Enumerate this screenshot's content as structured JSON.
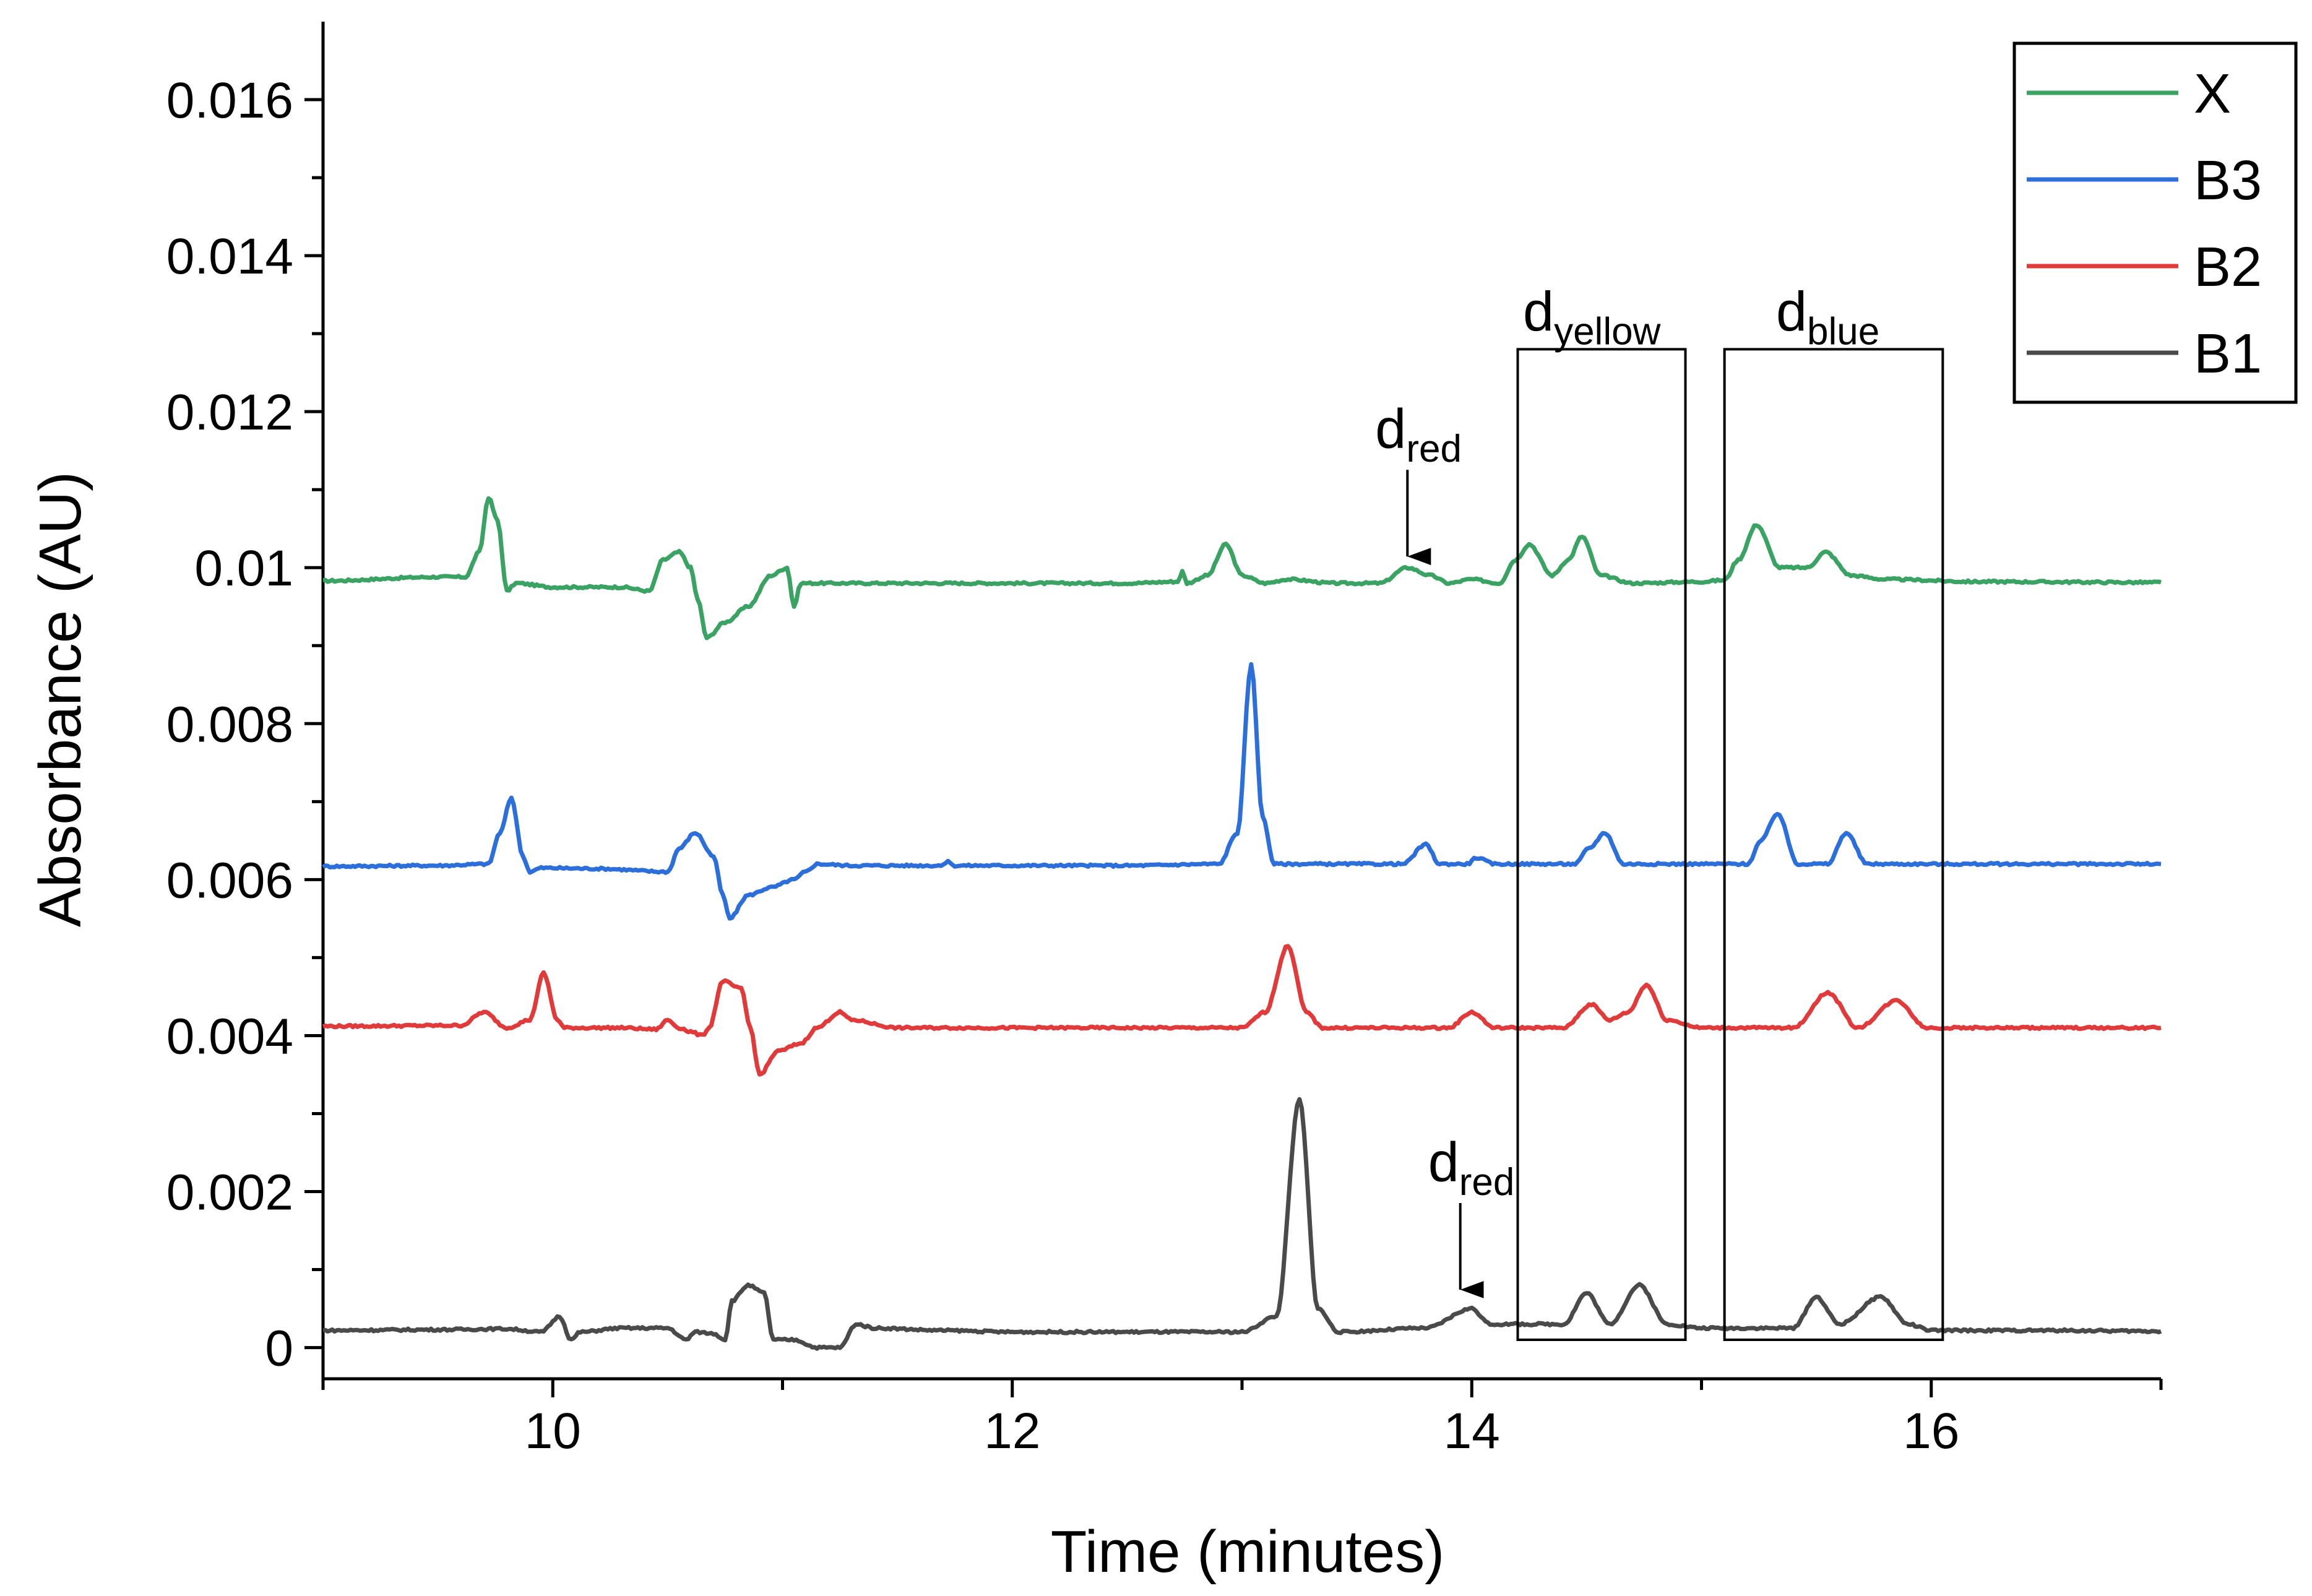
{
  "chart_data": {
    "type": "line",
    "xlabel": "Time (minutes)",
    "ylabel": "Absorbance (AU)",
    "xlim": [
      9,
      17
    ],
    "ylim": [
      -0.0004,
      0.017
    ],
    "x_ticks": [
      10,
      12,
      14,
      16
    ],
    "x_tick_labels": [
      "10",
      "12",
      "14",
      "16"
    ],
    "y_ticks": [
      0,
      0.002,
      0.004,
      0.006,
      0.008,
      0.01,
      0.012,
      0.014,
      0.016
    ],
    "y_tick_labels": [
      "0",
      "0.002",
      "0.004",
      "0.006",
      "0.008",
      "0.01",
      "0.012",
      "0.014",
      "0.016"
    ],
    "grid": false,
    "legend_position": "top-right",
    "series": [
      {
        "name": "X",
        "color": "#3aa363",
        "baseline": 0.0098,
        "points": [
          [
            9.0,
            0.00983
          ],
          [
            9.5,
            0.00988
          ],
          [
            9.62,
            0.00988
          ],
          [
            9.68,
            0.0102
          ],
          [
            9.72,
            0.0109
          ],
          [
            9.76,
            0.0106
          ],
          [
            9.8,
            0.0097
          ],
          [
            9.84,
            0.0098
          ],
          [
            10.0,
            0.00975
          ],
          [
            10.3,
            0.00975
          ],
          [
            10.42,
            0.0097
          ],
          [
            10.48,
            0.0101
          ],
          [
            10.55,
            0.0102
          ],
          [
            10.6,
            0.01
          ],
          [
            10.63,
            0.0096
          ],
          [
            10.67,
            0.0091
          ],
          [
            10.75,
            0.0093
          ],
          [
            10.85,
            0.0095
          ],
          [
            10.95,
            0.0099
          ],
          [
            11.02,
            0.01
          ],
          [
            11.05,
            0.0095
          ],
          [
            11.08,
            0.0098
          ],
          [
            11.5,
            0.0098
          ],
          [
            12.0,
            0.0098
          ],
          [
            12.5,
            0.0098
          ],
          [
            12.72,
            0.00982
          ],
          [
            12.74,
            0.00995
          ],
          [
            12.76,
            0.0098
          ],
          [
            12.85,
            0.0099
          ],
          [
            12.93,
            0.0103
          ],
          [
            13.0,
            0.0099
          ],
          [
            13.1,
            0.0098
          ],
          [
            13.2,
            0.00985
          ],
          [
            13.4,
            0.0098
          ],
          [
            13.6,
            0.0098
          ],
          [
            13.72,
            0.01
          ],
          [
            13.82,
            0.0099
          ],
          [
            13.9,
            0.0098
          ],
          [
            14.0,
            0.00985
          ],
          [
            14.12,
            0.0098
          ],
          [
            14.19,
            0.0101
          ],
          [
            14.25,
            0.0103
          ],
          [
            14.35,
            0.0099
          ],
          [
            14.42,
            0.0101
          ],
          [
            14.48,
            0.0104
          ],
          [
            14.56,
            0.0099
          ],
          [
            14.7,
            0.0098
          ],
          [
            15.0,
            0.00982
          ],
          [
            15.1,
            0.00984
          ],
          [
            15.16,
            0.0101
          ],
          [
            15.24,
            0.01055
          ],
          [
            15.34,
            0.01
          ],
          [
            15.46,
            0.01
          ],
          [
            15.54,
            0.0102
          ],
          [
            15.65,
            0.0099
          ],
          [
            15.8,
            0.00985
          ],
          [
            16.2,
            0.00982
          ],
          [
            17.0,
            0.00981
          ]
        ]
      },
      {
        "name": "B3",
        "color": "#2c6fdb",
        "baseline": 0.0062,
        "points": [
          [
            9.0,
            0.00617
          ],
          [
            9.5,
            0.00618
          ],
          [
            9.72,
            0.0062
          ],
          [
            9.77,
            0.0066
          ],
          [
            9.82,
            0.00705
          ],
          [
            9.87,
            0.0063
          ],
          [
            9.9,
            0.0061
          ],
          [
            9.95,
            0.00615
          ],
          [
            10.2,
            0.00614
          ],
          [
            10.5,
            0.0061
          ],
          [
            10.55,
            0.0064
          ],
          [
            10.62,
            0.0066
          ],
          [
            10.7,
            0.0063
          ],
          [
            10.74,
            0.0058
          ],
          [
            10.77,
            0.0055
          ],
          [
            10.85,
            0.0058
          ],
          [
            10.95,
            0.0059
          ],
          [
            11.05,
            0.006
          ],
          [
            11.1,
            0.0061
          ],
          [
            11.15,
            0.0062
          ],
          [
            11.3,
            0.00618
          ],
          [
            11.7,
            0.00618
          ],
          [
            11.72,
            0.00625
          ],
          [
            11.74,
            0.00618
          ],
          [
            12.5,
            0.00618
          ],
          [
            12.9,
            0.0062
          ],
          [
            12.98,
            0.0066
          ],
          [
            13.04,
            0.00875
          ],
          [
            13.09,
            0.0068
          ],
          [
            13.14,
            0.0062
          ],
          [
            13.3,
            0.0062
          ],
          [
            13.7,
            0.0062
          ],
          [
            13.8,
            0.00645
          ],
          [
            13.86,
            0.0062
          ],
          [
            13.98,
            0.0062
          ],
          [
            14.02,
            0.00628
          ],
          [
            14.1,
            0.0062
          ],
          [
            14.45,
            0.0062
          ],
          [
            14.51,
            0.0064
          ],
          [
            14.58,
            0.0066
          ],
          [
            14.66,
            0.0062
          ],
          [
            14.9,
            0.0062
          ],
          [
            15.2,
            0.0062
          ],
          [
            15.26,
            0.0065
          ],
          [
            15.33,
            0.00685
          ],
          [
            15.42,
            0.0062
          ],
          [
            15.55,
            0.0062
          ],
          [
            15.63,
            0.0066
          ],
          [
            15.72,
            0.0062
          ],
          [
            16.0,
            0.0062
          ],
          [
            16.5,
            0.0062
          ],
          [
            17.0,
            0.0062
          ]
        ]
      },
      {
        "name": "B2",
        "color": "#e03a3a",
        "baseline": 0.0041,
        "points": [
          [
            9.0,
            0.00412
          ],
          [
            9.6,
            0.00413
          ],
          [
            9.7,
            0.0043
          ],
          [
            9.8,
            0.0041
          ],
          [
            9.9,
            0.0042
          ],
          [
            9.96,
            0.0048
          ],
          [
            10.02,
            0.0042
          ],
          [
            10.05,
            0.0041
          ],
          [
            10.3,
            0.0041
          ],
          [
            10.45,
            0.00408
          ],
          [
            10.5,
            0.0042
          ],
          [
            10.55,
            0.0041
          ],
          [
            10.6,
            0.00405
          ],
          [
            10.65,
            0.004
          ],
          [
            10.68,
            0.0041
          ],
          [
            10.74,
            0.0047
          ],
          [
            10.82,
            0.0046
          ],
          [
            10.86,
            0.0041
          ],
          [
            10.9,
            0.0035
          ],
          [
            10.98,
            0.0038
          ],
          [
            11.08,
            0.0039
          ],
          [
            11.15,
            0.0041
          ],
          [
            11.25,
            0.0043
          ],
          [
            11.3,
            0.0042
          ],
          [
            11.5,
            0.0041
          ],
          [
            12.0,
            0.0041
          ],
          [
            12.5,
            0.0041
          ],
          [
            13.0,
            0.0041
          ],
          [
            13.1,
            0.0043
          ],
          [
            13.2,
            0.00515
          ],
          [
            13.28,
            0.0043
          ],
          [
            13.35,
            0.0041
          ],
          [
            13.7,
            0.0041
          ],
          [
            13.9,
            0.0041
          ],
          [
            14.0,
            0.0043
          ],
          [
            14.1,
            0.0041
          ],
          [
            14.4,
            0.0041
          ],
          [
            14.52,
            0.0044
          ],
          [
            14.6,
            0.0042
          ],
          [
            14.68,
            0.0043
          ],
          [
            14.76,
            0.00465
          ],
          [
            14.85,
            0.0042
          ],
          [
            15.0,
            0.0041
          ],
          [
            15.4,
            0.0041
          ],
          [
            15.55,
            0.00455
          ],
          [
            15.68,
            0.0041
          ],
          [
            15.85,
            0.00445
          ],
          [
            15.98,
            0.0041
          ],
          [
            16.5,
            0.0041
          ],
          [
            17.0,
            0.0041
          ]
        ]
      },
      {
        "name": "B1",
        "color": "#4a4a4a",
        "baseline": 0.0002,
        "points": [
          [
            9.0,
            0.00022
          ],
          [
            9.5,
            0.00023
          ],
          [
            9.8,
            0.00024
          ],
          [
            9.95,
            0.0002
          ],
          [
            10.03,
            0.0004
          ],
          [
            10.08,
            0.0001
          ],
          [
            10.12,
            0.0002
          ],
          [
            10.3,
            0.00025
          ],
          [
            10.5,
            0.00025
          ],
          [
            10.58,
            0.0001
          ],
          [
            10.62,
            0.0002
          ],
          [
            10.7,
            0.00018
          ],
          [
            10.75,
            0.0001
          ],
          [
            10.78,
            0.0006
          ],
          [
            10.85,
            0.0008
          ],
          [
            10.92,
            0.0007
          ],
          [
            10.96,
            0.0001
          ],
          [
            11.05,
            0.0001
          ],
          [
            11.15,
            0.0
          ],
          [
            11.25,
            0.0
          ],
          [
            11.32,
            0.0003
          ],
          [
            11.4,
            0.00025
          ],
          [
            11.7,
            0.00022
          ],
          [
            12.0,
            0.0002
          ],
          [
            12.5,
            0.0002
          ],
          [
            13.0,
            0.0002
          ],
          [
            13.15,
            0.0004
          ],
          [
            13.25,
            0.00318
          ],
          [
            13.33,
            0.0005
          ],
          [
            13.42,
            0.0002
          ],
          [
            13.8,
            0.00025
          ],
          [
            14.0,
            0.0005
          ],
          [
            14.08,
            0.0003
          ],
          [
            14.4,
            0.0003
          ],
          [
            14.5,
            0.0007
          ],
          [
            14.6,
            0.0003
          ],
          [
            14.73,
            0.0008
          ],
          [
            14.85,
            0.0003
          ],
          [
            15.0,
            0.00025
          ],
          [
            15.4,
            0.00025
          ],
          [
            15.5,
            0.00065
          ],
          [
            15.6,
            0.0003
          ],
          [
            15.78,
            0.00065
          ],
          [
            15.9,
            0.0003
          ],
          [
            16.0,
            0.00022
          ],
          [
            16.5,
            0.00022
          ],
          [
            17.0,
            0.00021
          ]
        ]
      }
    ],
    "annotations": [
      {
        "id": "d_red_top",
        "base": "d",
        "sub": "red",
        "arrow_to": [
          13.72,
          0.01
        ]
      },
      {
        "id": "d_red_bottom",
        "base": "d",
        "sub": "red",
        "arrow_to": [
          13.95,
          0.0006
        ]
      },
      {
        "id": "d_yellow",
        "base": "d",
        "sub": "yellow",
        "box_x": [
          14.2,
          14.93
        ],
        "box_y": [
          0.0001,
          0.0128
        ]
      },
      {
        "id": "d_blue",
        "base": "d",
        "sub": "blue",
        "box_x": [
          15.1,
          16.05
        ],
        "box_y": [
          0.0001,
          0.0128
        ]
      }
    ]
  }
}
